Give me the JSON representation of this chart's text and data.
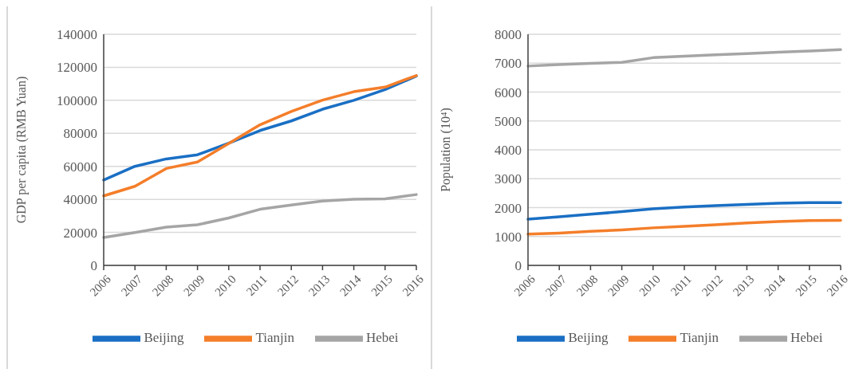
{
  "chart_data": [
    {
      "type": "line",
      "ylabel": "GDP per capita (RMB Yuan)",
      "categories": [
        "2006",
        "2007",
        "2008",
        "2009",
        "2010",
        "2011",
        "2012",
        "2013",
        "2014",
        "2015",
        "2016"
      ],
      "series": [
        {
          "name": "Beijing",
          "color": "#1a6fc4",
          "values": [
            51700,
            60000,
            64500,
            67000,
            74000,
            81700,
            87500,
            94600,
            100000,
            106500,
            114700
          ]
        },
        {
          "name": "Tianjin",
          "color": "#f47e2a",
          "values": [
            42100,
            47900,
            58700,
            62600,
            73900,
            85200,
            93200,
            100100,
            105200,
            108000,
            115000
          ]
        },
        {
          "name": "Hebei",
          "color": "#a5a5a5",
          "values": [
            16900,
            19900,
            23200,
            24600,
            28700,
            34000,
            36600,
            39000,
            40100,
            40300,
            42900
          ]
        }
      ],
      "ylim": [
        0,
        140000
      ],
      "yticks": [
        0,
        20000,
        40000,
        60000,
        80000,
        100000,
        120000,
        140000
      ],
      "grid": "y",
      "legend": "bottom",
      "marker": "none",
      "line_style": "solid"
    },
    {
      "type": "line",
      "ylabel": "Population (10⁴)",
      "categories": [
        "2006",
        "2007",
        "2008",
        "2009",
        "2010",
        "2011",
        "2012",
        "2013",
        "2014",
        "2015",
        "2016"
      ],
      "series": [
        {
          "name": "Beijing",
          "color": "#1a6fc4",
          "values": [
            1600,
            1680,
            1770,
            1860,
            1960,
            2020,
            2070,
            2110,
            2150,
            2170,
            2170
          ]
        },
        {
          "name": "Tianjin",
          "color": "#f47e2a",
          "values": [
            1080,
            1120,
            1180,
            1230,
            1300,
            1350,
            1410,
            1470,
            1520,
            1550,
            1560
          ]
        },
        {
          "name": "Hebei",
          "color": "#a5a5a5",
          "values": [
            6900,
            6950,
            6990,
            7030,
            7190,
            7240,
            7290,
            7330,
            7380,
            7420,
            7470
          ]
        }
      ],
      "ylim": [
        0,
        8000
      ],
      "yticks": [
        0,
        1000,
        2000,
        3000,
        4000,
        5000,
        6000,
        7000,
        8000
      ],
      "grid": "y",
      "legend": "bottom",
      "marker": "none",
      "line_style": "solid"
    }
  ]
}
